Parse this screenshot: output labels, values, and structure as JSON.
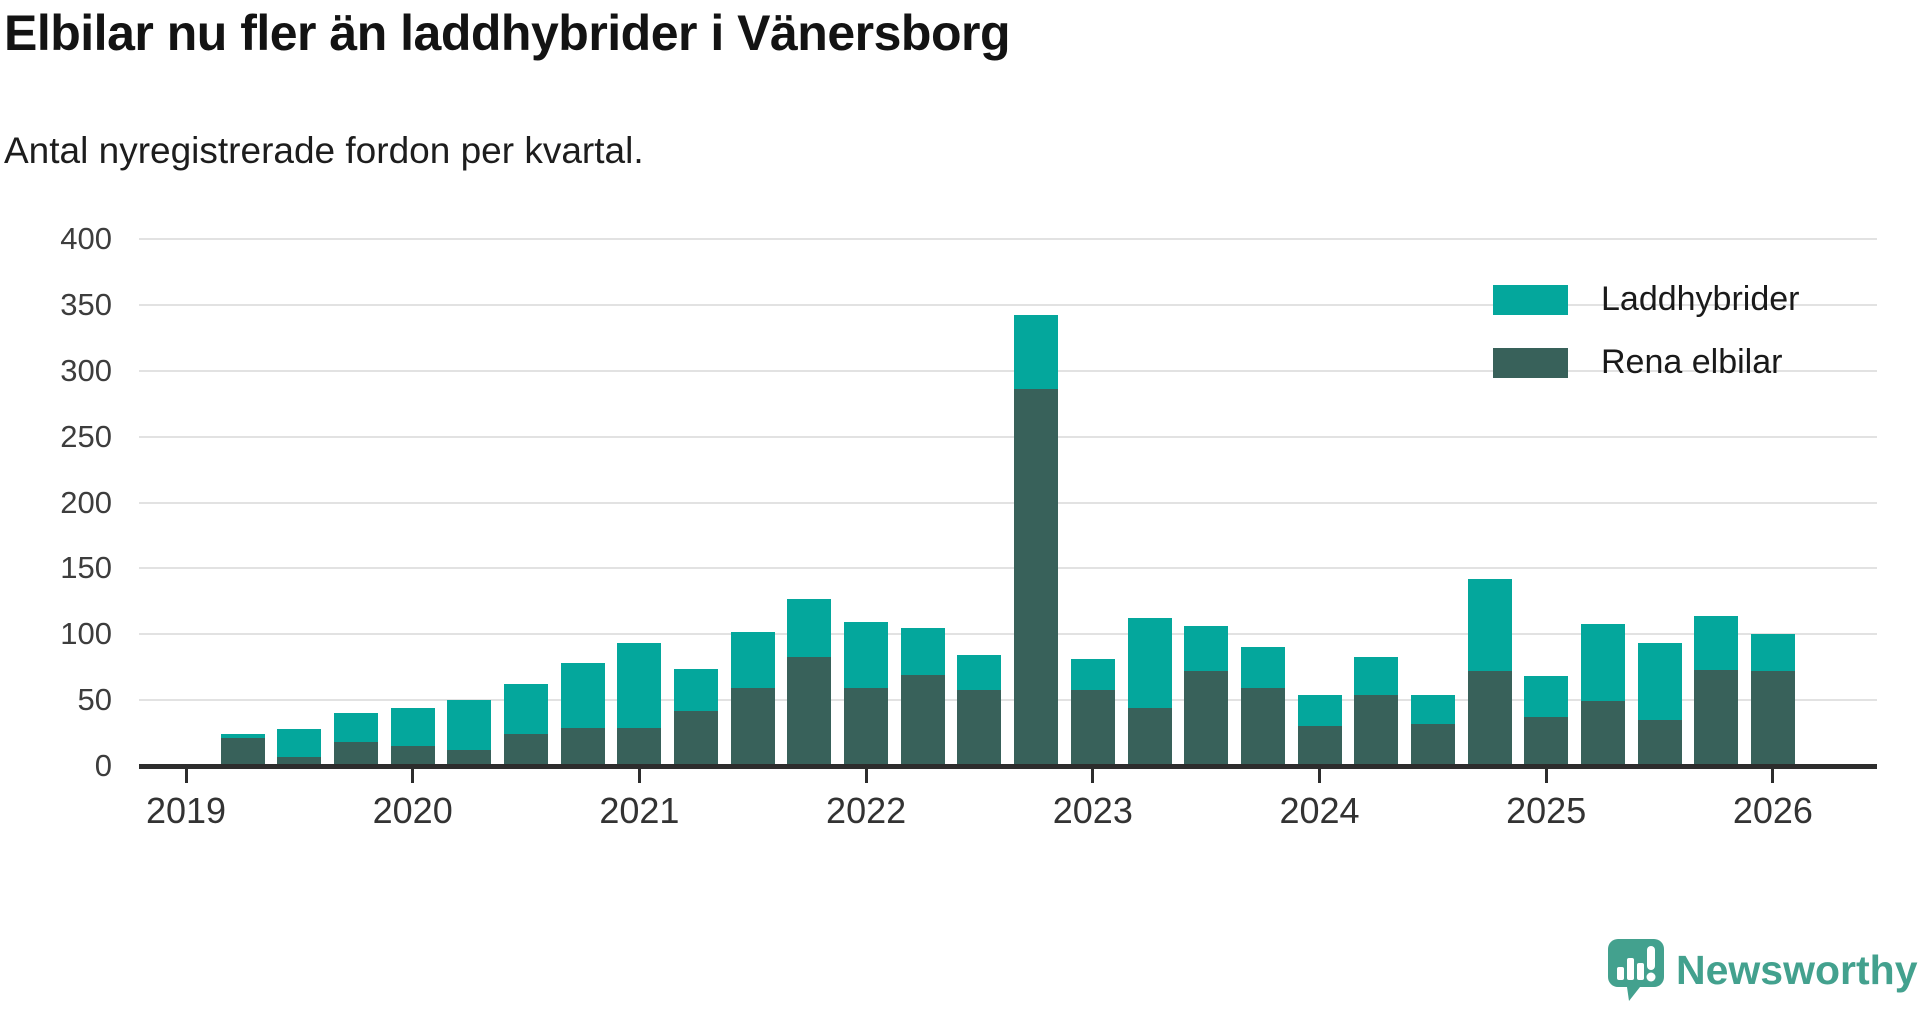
{
  "title": "Elbilar nu fler än laddhybrider i Vänersborg",
  "subtitle": "Antal nyregistrerade fordon per kvartal.",
  "legend": [
    {
      "label": "Laddhybrider",
      "color": "#04a79c"
    },
    {
      "label": "Rena elbilar",
      "color": "#38615a"
    }
  ],
  "colors": {
    "laddhybrider": "#04a79c",
    "rena_elbilar": "#38615a",
    "axis": "#2d2d2d",
    "gridline": "#e2e2e2",
    "logo_teal": "#43a18e"
  },
  "chart_data": {
    "type": "bar",
    "stacked": true,
    "title": "Elbilar nu fler än laddhybrider i Vänersborg",
    "subtitle": "Antal nyregistrerade fordon per kvartal.",
    "xlabel": "",
    "ylabel": "",
    "ylim": [
      0,
      400
    ],
    "yticks": [
      0,
      50,
      100,
      150,
      200,
      250,
      300,
      350,
      400
    ],
    "grid": "horizontal",
    "legend_position": "top-right",
    "x_tick_labels": [
      "2019",
      "2020",
      "2021",
      "2022",
      "2023",
      "2024",
      "2025",
      "2026"
    ],
    "categories": [
      "2019 Q2",
      "2019 Q3",
      "2019 Q4",
      "2020 Q1",
      "2020 Q2",
      "2020 Q3",
      "2020 Q4",
      "2021 Q1",
      "2021 Q2",
      "2021 Q3",
      "2021 Q4",
      "2022 Q1",
      "2022 Q2",
      "2022 Q3",
      "2022 Q4",
      "2023 Q1",
      "2023 Q2",
      "2023 Q3",
      "2023 Q4",
      "2024 Q1",
      "2024 Q2",
      "2024 Q3",
      "2024 Q4",
      "2025 Q1",
      "2025 Q2",
      "2025 Q3",
      "2025 Q4",
      "2026 Q1"
    ],
    "series": [
      {
        "name": "Rena elbilar",
        "color": "#38615a",
        "values": [
          21,
          7,
          18,
          15,
          12,
          24,
          29,
          29,
          42,
          59,
          83,
          59,
          69,
          58,
          286,
          58,
          44,
          72,
          59,
          30,
          54,
          32,
          72,
          37,
          49,
          35,
          73,
          72
        ]
      },
      {
        "name": "Laddhybrider",
        "color": "#04a79c",
        "values": [
          3,
          21,
          22,
          29,
          38,
          38,
          49,
          64,
          32,
          43,
          44,
          50,
          36,
          26,
          56,
          23,
          68,
          34,
          31,
          24,
          29,
          22,
          70,
          31,
          59,
          58,
          41,
          28
        ]
      }
    ],
    "stack_totals": [
      24,
      28,
      40,
      44,
      50,
      62,
      78,
      93,
      74,
      102,
      127,
      109,
      105,
      84,
      342,
      81,
      112,
      106,
      90,
      54,
      83,
      54,
      142,
      68,
      108,
      93,
      114,
      100
    ]
  },
  "logo": {
    "text": "Newsworthy"
  }
}
